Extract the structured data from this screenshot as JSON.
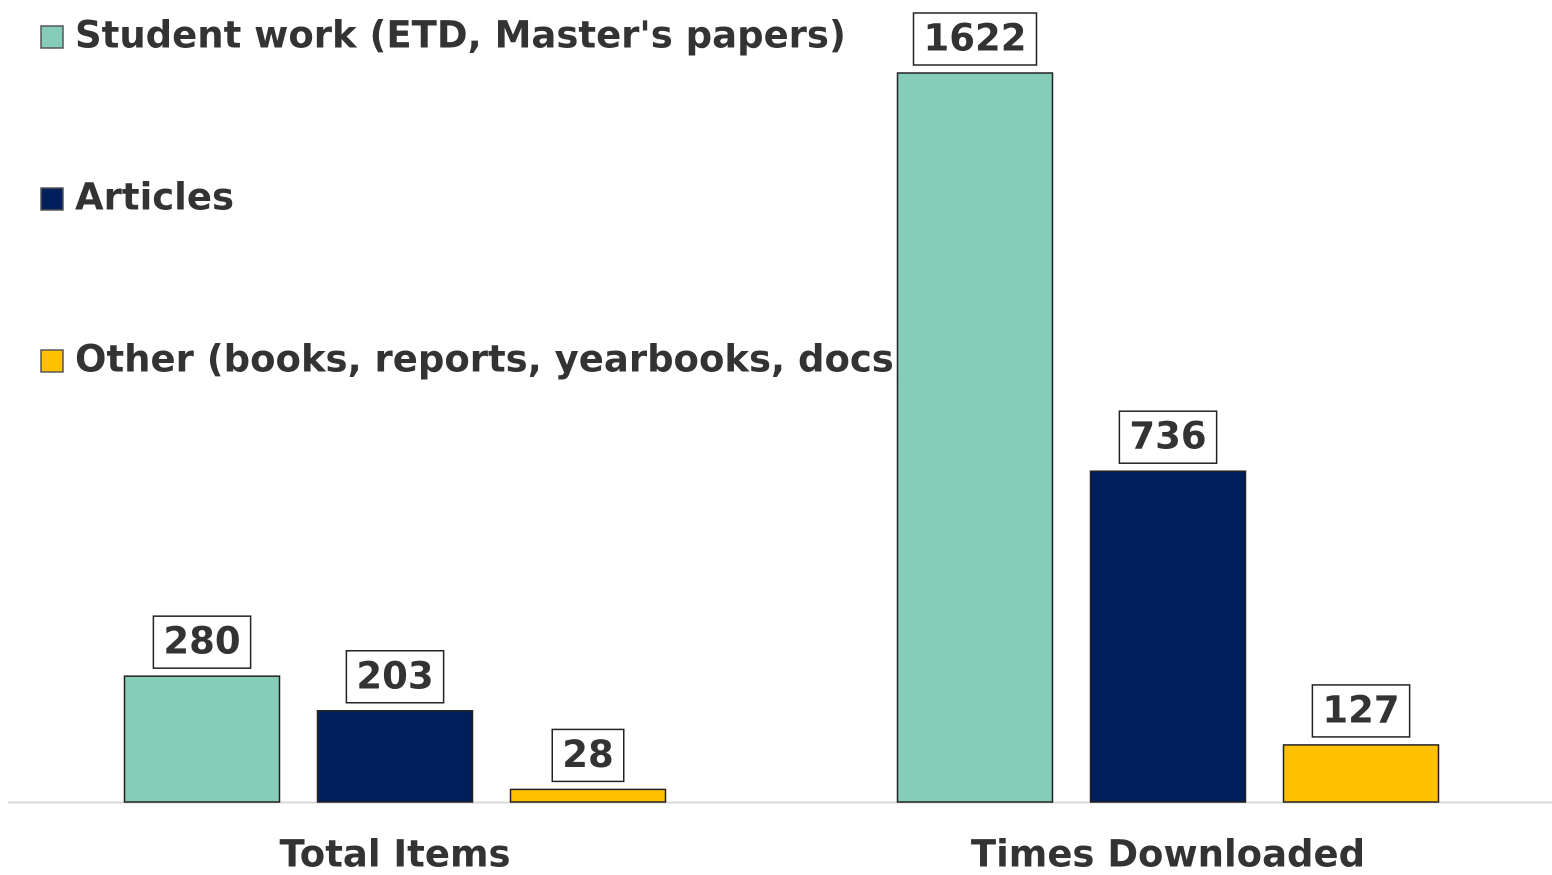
{
  "chart_data": {
    "type": "bar",
    "categories": [
      "Total Items",
      "Times Downloaded"
    ],
    "series": [
      {
        "name": "Student work (ETD, Master's papers)",
        "color": "#85cdb9",
        "values": [
          280,
          1622
        ]
      },
      {
        "name": "Articles",
        "color": "#001f5b",
        "values": [
          203,
          736
        ]
      },
      {
        "name": "Other (books, reports, yearbooks, docs)",
        "color": "#ffc000",
        "values": [
          28,
          127
        ]
      }
    ],
    "legend": "top-left"
  }
}
